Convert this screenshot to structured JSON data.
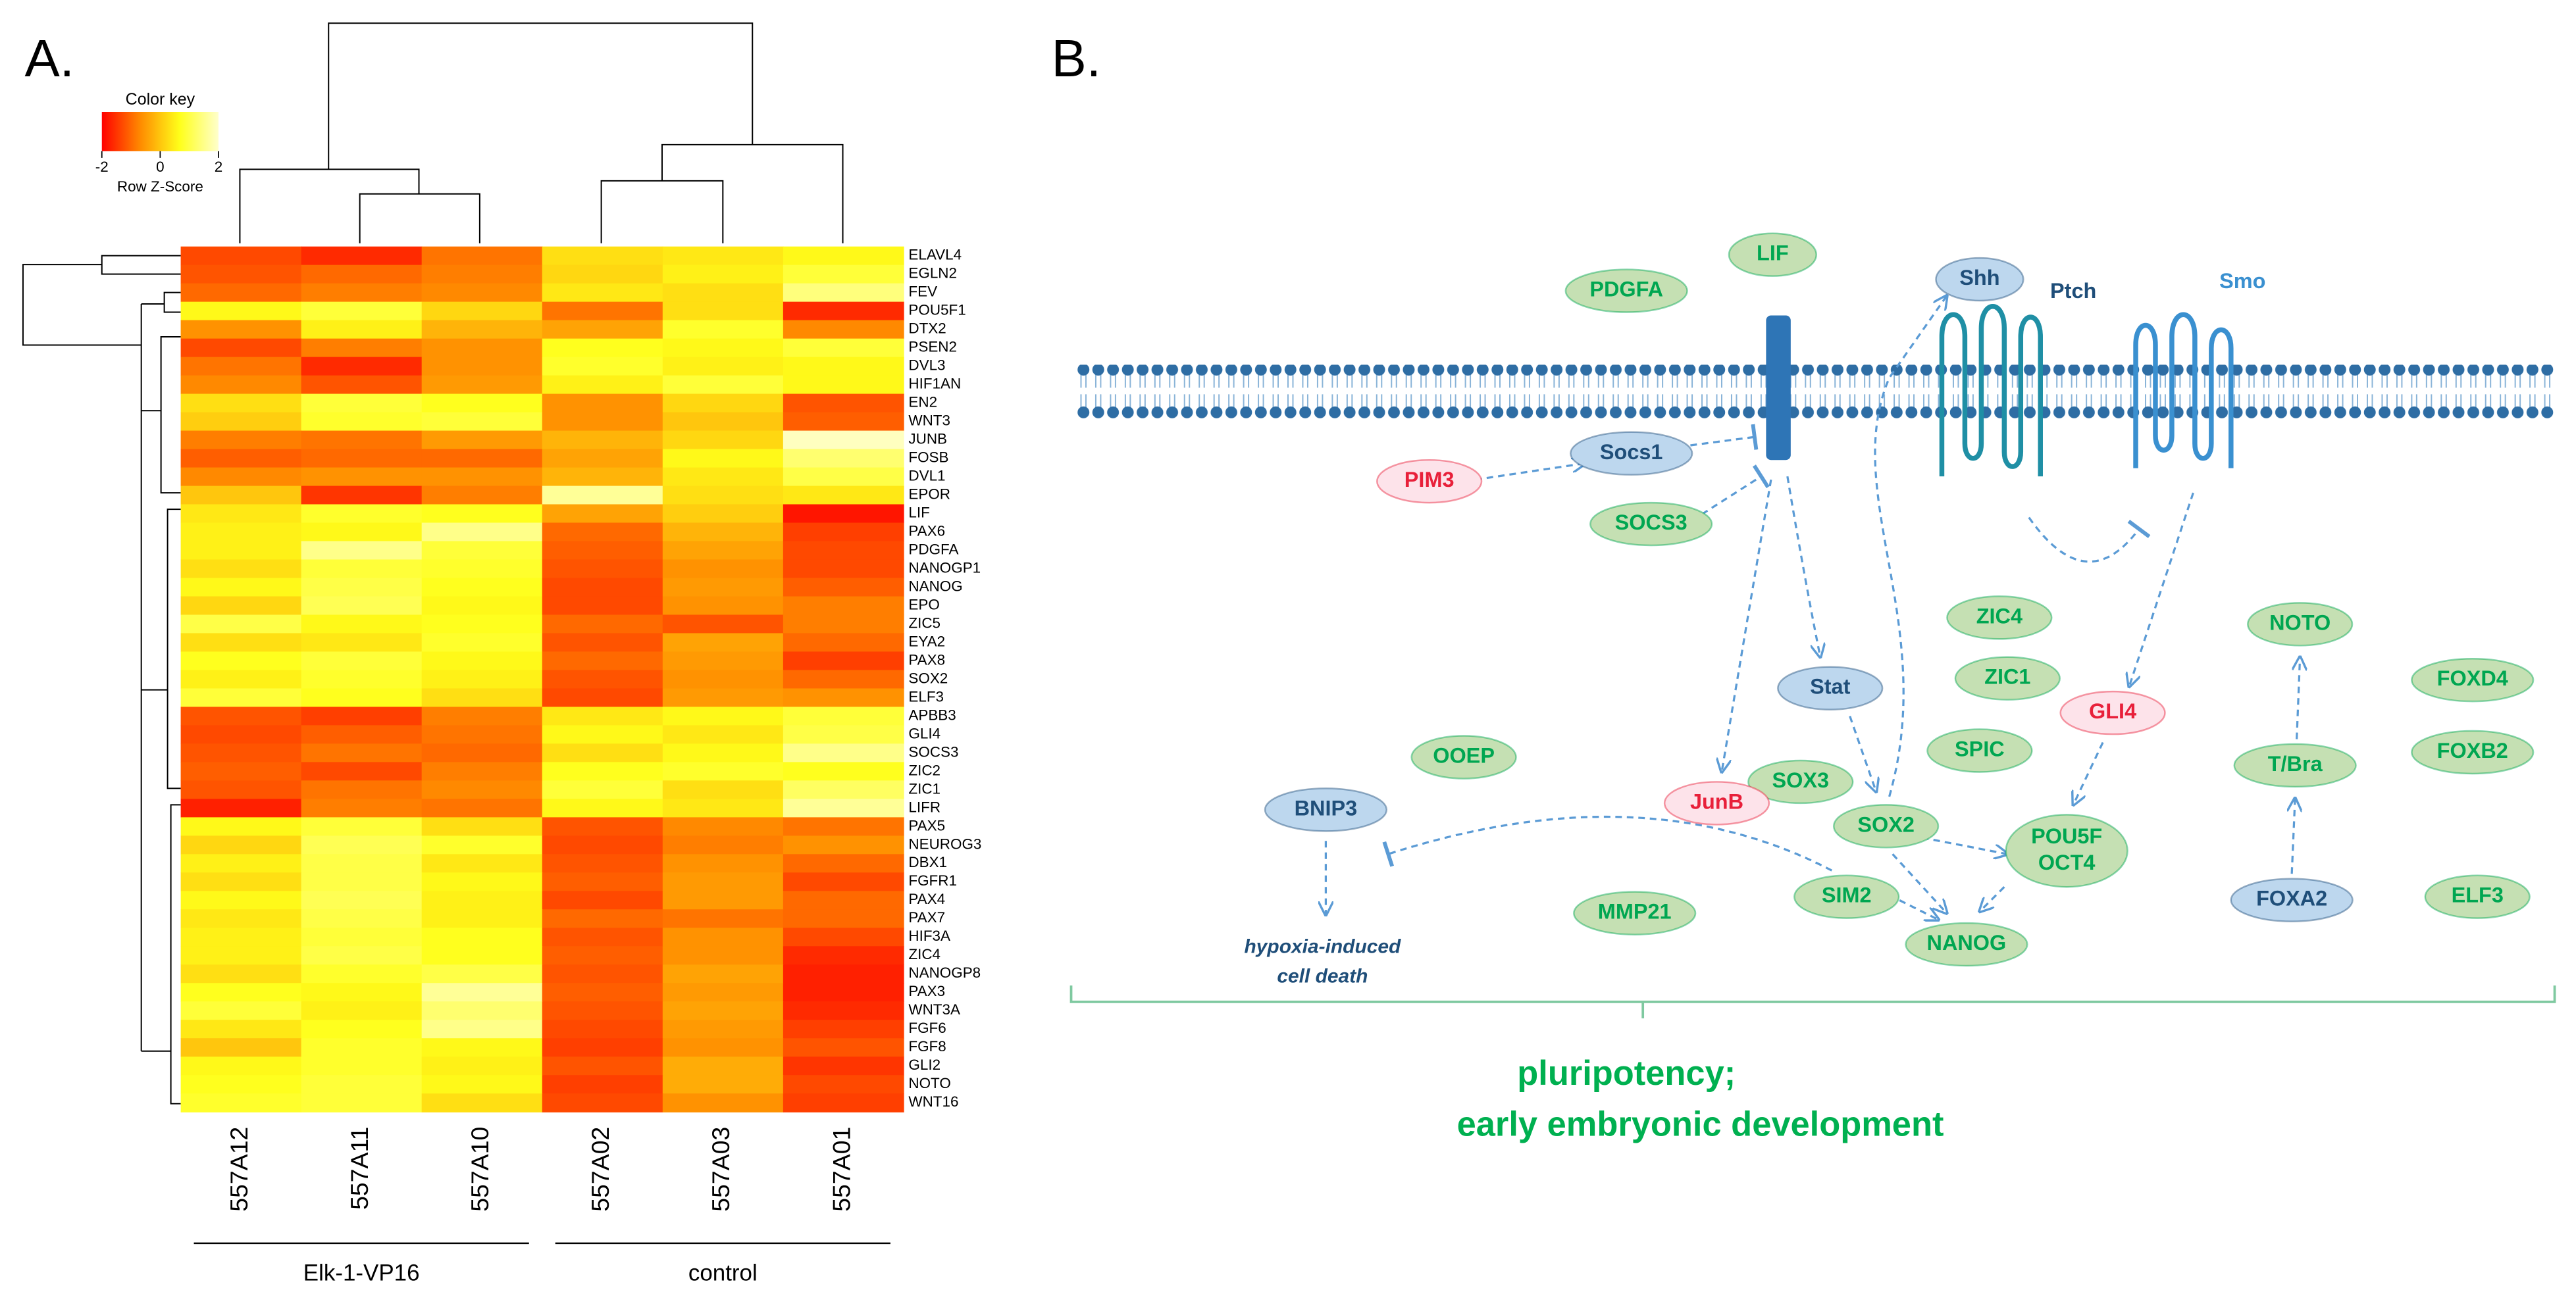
{
  "panel_labels": [
    "A.",
    "B."
  ],
  "chart_data": {
    "type": "heatmap",
    "columns": [
      "557A12",
      "557A11",
      "557A10",
      "557A02",
      "557A03",
      "557A01"
    ],
    "groups": [
      "Elk-1-VP16",
      "control"
    ],
    "rows": [
      "ELAVL4",
      "EGLN2",
      "FEV",
      "POU5F1",
      "DTX2",
      "PSEN2",
      "DVL3",
      "HIF1AN",
      "EN2",
      "WNT3",
      "JUNB",
      "FOSB",
      "DVL1",
      "EPOR",
      "LIF",
      "PAX6",
      "PDGFA",
      "NANOGP1",
      "NANOG",
      "EPO",
      "ZIC5",
      "EYA2",
      "PAX8",
      "SOX2",
      "ELF3",
      "APBB3",
      "GLI4",
      "SOCS3",
      "ZIC2",
      "ZIC1",
      "LIFR",
      "PAX5",
      "NEUROG3",
      "DBX1",
      "FGFR1",
      "PAX4",
      "PAX7",
      "HIF3A",
      "ZIC4",
      "NANOGP8",
      "PAX3",
      "WNT3A",
      "FGF6",
      "FGF8",
      "GLI2",
      "NOTO",
      "WNT16"
    ],
    "values": [
      [
        -1.3,
        -1.6,
        -0.9,
        0.3,
        0.4,
        0.6
      ],
      [
        -1.2,
        -1.0,
        -0.8,
        0.2,
        0.5,
        0.9
      ],
      [
        -1.0,
        -0.8,
        -0.7,
        0.4,
        0.3,
        1.4
      ],
      [
        0.6,
        0.9,
        0.2,
        -0.9,
        0.3,
        -1.6
      ],
      [
        -0.6,
        0.5,
        -0.2,
        -0.4,
        0.8,
        -0.7
      ],
      [
        -1.3,
        -0.8,
        -0.6,
        0.7,
        0.6,
        0.9
      ],
      [
        -0.9,
        -1.6,
        -0.6,
        0.8,
        0.5,
        0.6
      ],
      [
        -0.7,
        -1.2,
        -0.5,
        0.5,
        0.9,
        0.6
      ],
      [
        0.3,
        0.9,
        0.7,
        -0.6,
        0.2,
        -1.2
      ],
      [
        0.1,
        0.8,
        0.9,
        -0.6,
        0.0,
        -1.1
      ],
      [
        -0.8,
        -0.9,
        -0.5,
        -0.2,
        0.2,
        1.9
      ],
      [
        -1.1,
        -1.0,
        -1.0,
        -0.4,
        0.6,
        1.3
      ],
      [
        -0.7,
        -0.6,
        -0.6,
        -0.2,
        0.4,
        1.0
      ],
      [
        0.0,
        -1.5,
        -0.8,
        1.6,
        0.3,
        0.4
      ],
      [
        0.4,
        0.8,
        0.7,
        -0.4,
        0.1,
        -1.8
      ],
      [
        0.5,
        0.6,
        1.5,
        -1.0,
        -0.2,
        -1.4
      ],
      [
        0.5,
        1.5,
        0.9,
        -1.1,
        -0.4,
        -1.3
      ],
      [
        0.3,
        0.9,
        0.8,
        -1.2,
        -0.6,
        -1.3
      ],
      [
        0.6,
        1.0,
        0.7,
        -1.3,
        -0.5,
        -1.1
      ],
      [
        0.2,
        1.1,
        0.6,
        -1.3,
        -0.6,
        -0.8
      ],
      [
        1.0,
        0.6,
        0.7,
        -1.0,
        -1.2,
        -0.8
      ],
      [
        0.3,
        0.4,
        0.8,
        -1.2,
        -0.4,
        -1.0
      ],
      [
        0.7,
        0.9,
        0.6,
        -1.0,
        -0.5,
        -1.4
      ],
      [
        0.5,
        0.8,
        0.5,
        -1.2,
        -0.6,
        -1.0
      ],
      [
        0.9,
        0.7,
        0.3,
        -1.3,
        -0.5,
        -0.6
      ],
      [
        -1.2,
        -1.4,
        -0.8,
        0.4,
        0.6,
        0.9
      ],
      [
        -1.3,
        -1.1,
        -0.9,
        0.6,
        0.4,
        1.0
      ],
      [
        -1.2,
        -0.9,
        -1.0,
        0.3,
        0.6,
        1.5
      ],
      [
        -1.1,
        -1.3,
        -0.8,
        0.7,
        0.8,
        0.7
      ],
      [
        -1.2,
        -0.9,
        -0.7,
        0.9,
        0.3,
        1.2
      ],
      [
        -1.7,
        -0.8,
        -0.9,
        0.6,
        0.4,
        1.6
      ],
      [
        0.6,
        0.9,
        0.3,
        -1.2,
        -0.7,
        -0.9
      ],
      [
        0.2,
        1.1,
        0.8,
        -1.3,
        -0.8,
        -0.6
      ],
      [
        0.5,
        1.0,
        0.4,
        -1.2,
        -0.6,
        -1.0
      ],
      [
        0.3,
        1.0,
        0.6,
        -1.1,
        -0.5,
        -1.3
      ],
      [
        0.6,
        1.1,
        0.5,
        -1.3,
        -0.5,
        -1.0
      ],
      [
        0.4,
        1.0,
        0.5,
        -1.0,
        -0.9,
        -1.0
      ],
      [
        0.5,
        0.9,
        0.7,
        -1.2,
        -0.6,
        -1.3
      ],
      [
        0.5,
        1.0,
        0.7,
        -1.1,
        -0.6,
        -1.6
      ],
      [
        0.3,
        0.8,
        1.0,
        -1.2,
        -0.4,
        -1.7
      ],
      [
        0.7,
        0.6,
        1.6,
        -1.1,
        -0.5,
        -1.7
      ],
      [
        0.9,
        0.5,
        1.3,
        -1.2,
        -0.4,
        -1.6
      ],
      [
        0.4,
        0.7,
        1.5,
        -1.3,
        -0.5,
        -1.4
      ],
      [
        0.0,
        0.8,
        0.6,
        -1.4,
        -0.6,
        -1.2
      ],
      [
        0.6,
        0.8,
        0.5,
        -1.2,
        -0.3,
        -1.5
      ],
      [
        0.7,
        0.9,
        0.6,
        -1.4,
        -0.3,
        -1.3
      ],
      [
        0.8,
        0.9,
        0.3,
        -1.3,
        -0.6,
        -1.4
      ]
    ],
    "color_key": {
      "title": "Color key",
      "label": "Row Z-Score",
      "lim": [
        -2,
        2
      ],
      "ticks": [
        -2,
        0,
        2
      ],
      "colors": [
        "#ff0000",
        "#ff8c00",
        "#ffff1a",
        "#ffffcc"
      ]
    }
  },
  "diagram": {
    "nodes": [
      {
        "lines": [
          "PDGFA"
        ],
        "color": "#c5e0b3",
        "text_color": "#00a651"
      },
      {
        "lines": [
          "LIF"
        ],
        "color": "#c5e0b3",
        "text_color": "#00a651"
      },
      {
        "lines": [
          "Shh"
        ],
        "color": "#bdd7ee",
        "text_color": "#1f4e79"
      },
      {
        "lines": [
          "PIM3"
        ],
        "color": "#fde3ea",
        "text_color": "#e8203a"
      },
      {
        "lines": [
          "Socs1"
        ],
        "color": "#bdd7ee",
        "text_color": "#1f4e79"
      },
      {
        "lines": [
          "SOCS3"
        ],
        "color": "#c5e0b3",
        "text_color": "#00a651"
      },
      {
        "lines": [
          "ZIC4"
        ],
        "color": "#c5e0b3",
        "text_color": "#00a651"
      },
      {
        "lines": [
          "NOTO"
        ],
        "color": "#c5e0b3",
        "text_color": "#00a651"
      },
      {
        "lines": [
          "Stat"
        ],
        "color": "#bdd7ee",
        "text_color": "#1f4e79"
      },
      {
        "lines": [
          "ZIC1"
        ],
        "color": "#c5e0b3",
        "text_color": "#00a651"
      },
      {
        "lines": [
          "GLI4"
        ],
        "color": "#fde3ea",
        "text_color": "#e8203a"
      },
      {
        "lines": [
          "FOXD4"
        ],
        "color": "#c5e0b3",
        "text_color": "#00a651"
      },
      {
        "lines": [
          "OOEP"
        ],
        "color": "#c5e0b3",
        "text_color": "#00a651"
      },
      {
        "lines": [
          "SPIC"
        ],
        "color": "#c5e0b3",
        "text_color": "#00a651"
      },
      {
        "lines": [
          "SOX3"
        ],
        "color": "#c5e0b3",
        "text_color": "#00a651"
      },
      {
        "lines": [
          "T/Bra"
        ],
        "color": "#c5e0b3",
        "text_color": "#00a651"
      },
      {
        "lines": [
          "FOXB2"
        ],
        "color": "#c5e0b3",
        "text_color": "#00a651"
      },
      {
        "lines": [
          "BNIP3"
        ],
        "color": "#bdd7ee",
        "text_color": "#1f4e79"
      },
      {
        "lines": [
          "JunB"
        ],
        "color": "#fde3ea",
        "text_color": "#e8203a"
      },
      {
        "lines": [
          "SOX2"
        ],
        "color": "#c5e0b3",
        "text_color": "#00a651"
      },
      {
        "lines": [
          "POU5F",
          "OCT4"
        ],
        "color": "#c5e0b3",
        "text_color": "#00a651"
      },
      {
        "lines": [
          "SIM2"
        ],
        "color": "#c5e0b3",
        "text_color": "#00a651"
      },
      {
        "lines": [
          "MMP21"
        ],
        "color": "#c5e0b3",
        "text_color": "#00a651"
      },
      {
        "lines": [
          "FOXA2"
        ],
        "color": "#bdd7ee",
        "text_color": "#1f4e79"
      },
      {
        "lines": [
          "ELF3"
        ],
        "color": "#c5e0b3",
        "text_color": "#00a651"
      },
      {
        "lines": [
          "NANOG"
        ],
        "color": "#c5e0b3",
        "text_color": "#00a651"
      }
    ],
    "texts": [
      "Ptch",
      "Smo",
      "hypoxia-induced",
      "cell death",
      "pluripotency;",
      "early embryonic development"
    ]
  }
}
